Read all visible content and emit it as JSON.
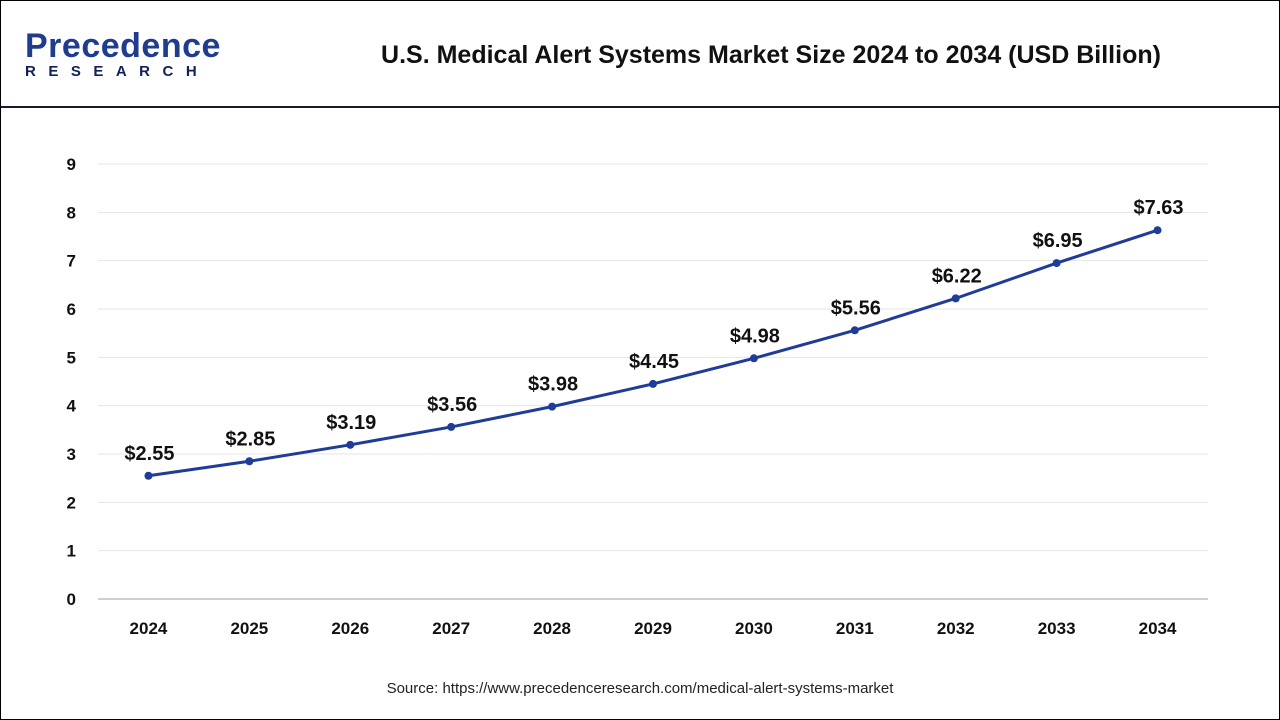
{
  "header": {
    "logo_main": "Precedence",
    "logo_sub": "RESEARCH",
    "title": "U.S. Medical Alert Systems Market Size 2024 to 2034 (USD Billion)"
  },
  "source": "Source: https://www.precedenceresearch.com/medical-alert-systems-market",
  "colors": {
    "line": "#1f3c99",
    "grid": "#e6e6e6",
    "axis": "#bfbfbf"
  },
  "chart_data": {
    "type": "line",
    "title": "U.S. Medical Alert Systems Market Size 2024 to 2034 (USD Billion)",
    "xlabel": "",
    "ylabel": "",
    "categories": [
      "2024",
      "2025",
      "2026",
      "2027",
      "2028",
      "2029",
      "2030",
      "2031",
      "2032",
      "2033",
      "2034"
    ],
    "values": [
      2.55,
      2.85,
      3.19,
      3.56,
      3.98,
      4.45,
      4.98,
      5.56,
      6.22,
      6.95,
      7.63
    ],
    "labels": [
      "$2.55",
      "$2.85",
      "$3.19",
      "$3.56",
      "$3.98",
      "$4.45",
      "$4.98",
      "$5.56",
      "$6.22",
      "$6.95",
      "$7.63"
    ],
    "ylim": [
      0,
      9
    ],
    "yticks": [
      "0",
      "1",
      "2",
      "3",
      "4",
      "5",
      "6",
      "7",
      "8",
      "9"
    ],
    "grid": true,
    "legend": "none"
  }
}
